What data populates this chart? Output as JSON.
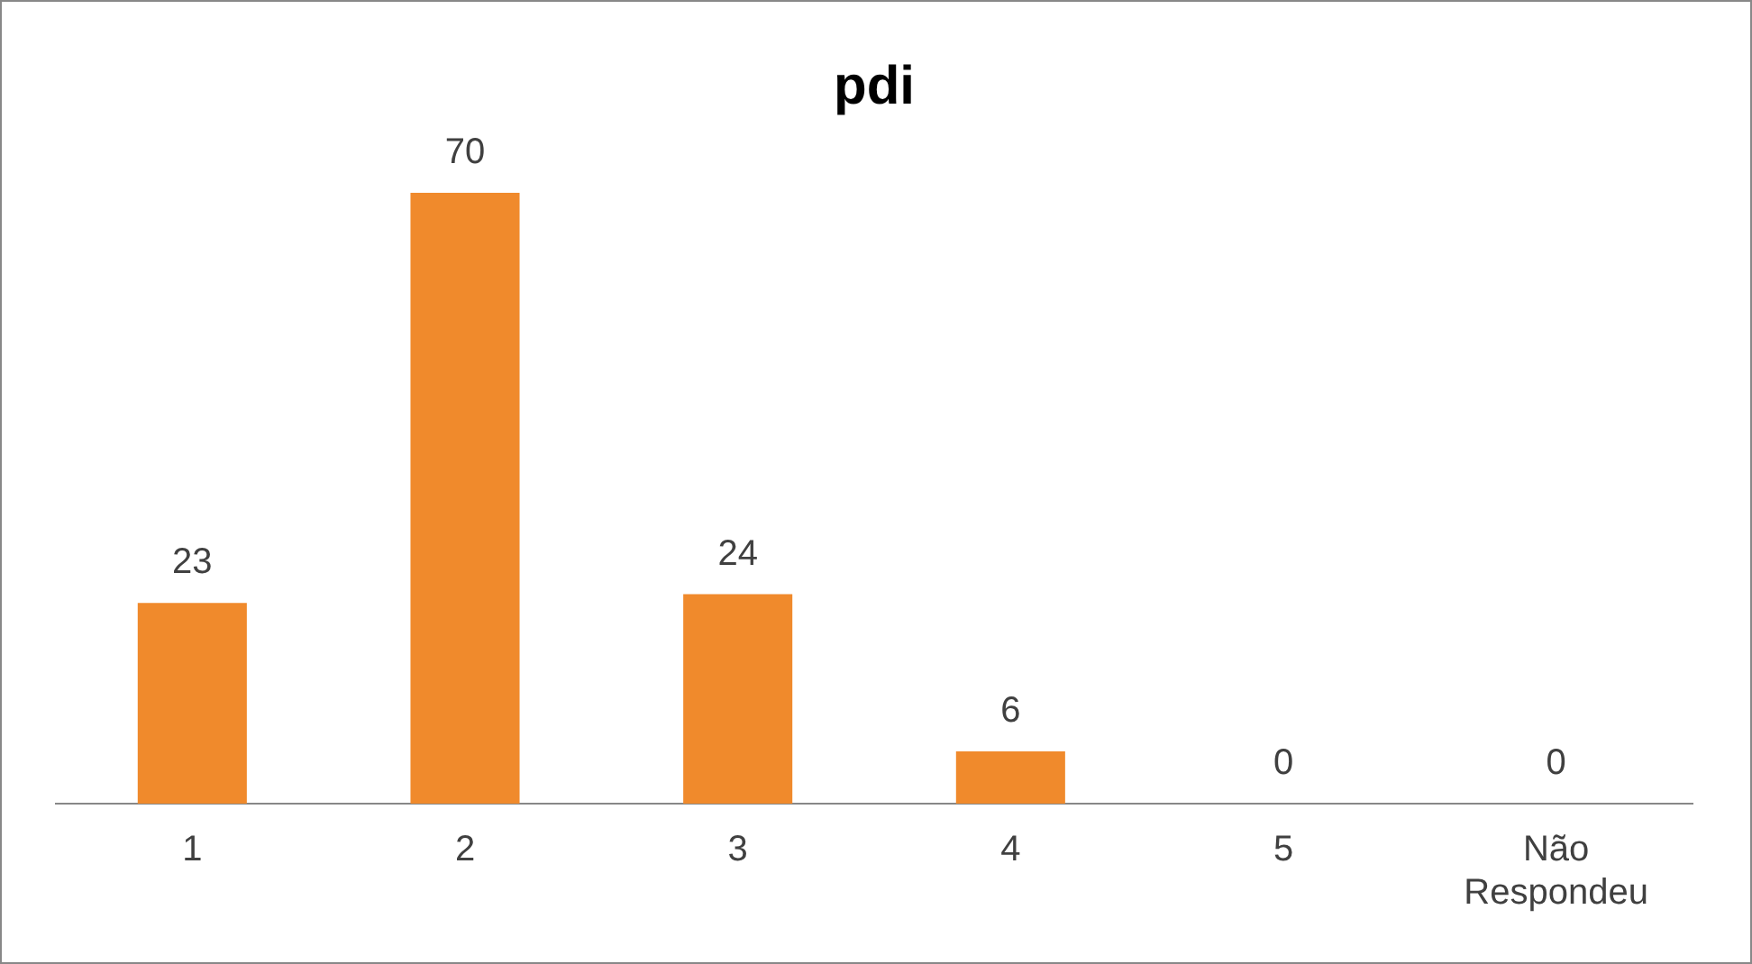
{
  "chart_data": {
    "type": "bar",
    "title": "pdi",
    "categories": [
      "1",
      "2",
      "3",
      "4",
      "5",
      "Não Respondeu"
    ],
    "values": [
      23,
      70,
      24,
      6,
      0,
      0
    ],
    "color": "#f08a2c",
    "data_labels": true,
    "grid": false,
    "legend": false,
    "tick_labels": "x"
  }
}
